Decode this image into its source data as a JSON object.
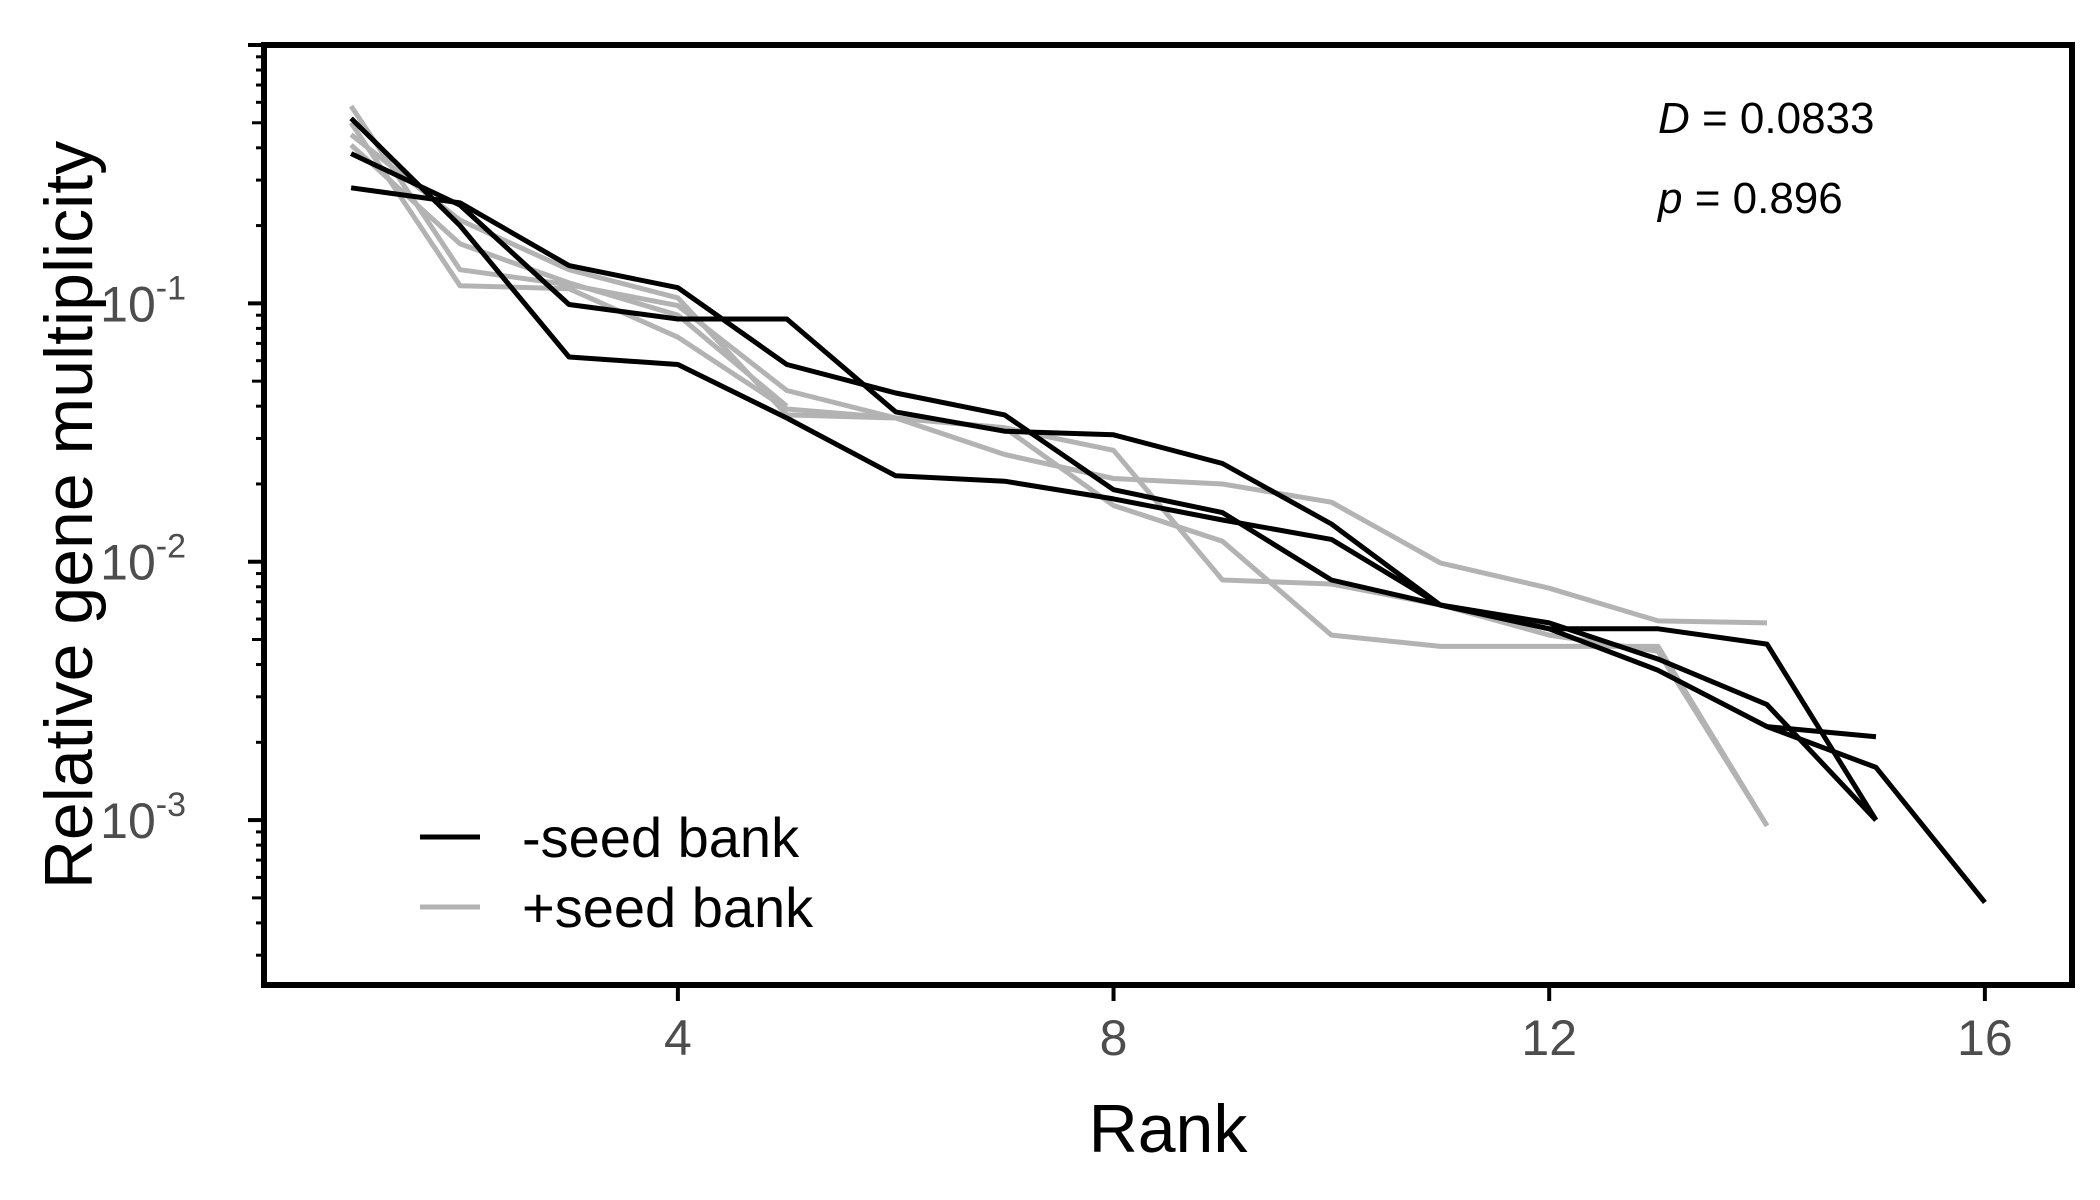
{
  "chart_data": {
    "type": "line",
    "xlabel": "Rank",
    "ylabel": "Relative gene multiplicity",
    "y_scale": "log10",
    "xlim": [
      0.2,
      16.8
    ],
    "ylim": [
      0.00023,
      1.0
    ],
    "x_ticks": [
      4,
      8,
      12,
      16
    ],
    "y_ticks": [
      {
        "value": 0.1,
        "base": "10",
        "exp": "-1"
      },
      {
        "value": 0.01,
        "base": "10",
        "exp": "-2"
      },
      {
        "value": 0.001,
        "base": "10",
        "exp": "-3"
      }
    ],
    "grid": false,
    "legend_position": "bottom-left",
    "legend": [
      {
        "label": "-seed bank",
        "color": "#000000"
      },
      {
        "label": "+seed bank",
        "color": "#b3b3b3"
      }
    ],
    "annotations": [
      {
        "symbol": "D",
        "rest": " = 0.0833"
      },
      {
        "symbol": "p",
        "rest": " = 0.896"
      }
    ],
    "series": [
      {
        "group": "-seed bank",
        "color": "#000000",
        "x": [
          1,
          2,
          3,
          4,
          5,
          6,
          7,
          8,
          9,
          10,
          11,
          12,
          13,
          14,
          15
        ],
        "y": [
          0.52,
          0.2,
          0.062,
          0.058,
          0.036,
          0.0215,
          0.0205,
          0.0175,
          0.0145,
          0.0122,
          0.0068,
          0.0058,
          0.0042,
          0.0028,
          0.001
        ]
      },
      {
        "group": "-seed bank",
        "color": "#000000",
        "x": [
          1,
          2,
          3,
          4,
          5,
          6,
          7,
          8,
          9,
          10,
          11,
          12,
          13,
          14,
          15
        ],
        "y": [
          0.28,
          0.245,
          0.14,
          0.115,
          0.058,
          0.045,
          0.037,
          0.019,
          0.0155,
          0.0085,
          0.0068,
          0.0055,
          0.0055,
          0.0048,
          0.001
        ]
      },
      {
        "group": "-seed bank",
        "color": "#000000",
        "x": [
          1,
          2,
          3,
          4,
          5,
          6,
          7,
          8,
          9,
          10,
          11,
          12,
          13,
          14,
          15,
          16
        ],
        "y": [
          0.38,
          0.24,
          0.099,
          0.087,
          0.087,
          0.038,
          0.032,
          0.031,
          0.024,
          0.014,
          0.0068,
          0.0055,
          0.0038,
          0.0023,
          0.0016,
          0.00048
        ]
      },
      {
        "group": "-seed bank",
        "color": "#000000",
        "x": [
          14,
          15
        ],
        "y": [
          0.0023,
          0.0021
        ]
      },
      {
        "group": "+seed bank",
        "color": "#b3b3b3",
        "x": [
          1,
          2,
          3,
          4,
          5,
          6,
          7,
          8,
          9,
          10,
          11,
          12,
          13,
          14
        ],
        "y": [
          0.58,
          0.135,
          0.118,
          0.098,
          0.046,
          0.036,
          0.026,
          0.021,
          0.02,
          0.017,
          0.0099,
          0.0079,
          0.0059,
          0.0058
        ]
      },
      {
        "group": "+seed bank",
        "color": "#b3b3b3",
        "x": [
          1,
          2,
          3,
          4,
          5,
          6,
          7,
          8,
          9,
          10,
          11,
          12,
          13,
          14
        ],
        "y": [
          0.5,
          0.117,
          0.114,
          0.074,
          0.039,
          0.036,
          0.033,
          0.027,
          0.0085,
          0.0082,
          0.0068,
          0.0052,
          0.0045,
          0.00095
        ]
      },
      {
        "group": "+seed bank",
        "color": "#b3b3b3",
        "x": [
          1,
          2,
          3,
          4,
          5,
          6,
          7,
          8,
          9,
          10,
          11,
          12,
          13,
          14
        ],
        "y": [
          0.45,
          0.21,
          0.135,
          0.105,
          0.037,
          0.036,
          0.033,
          0.0165,
          0.012,
          0.0052,
          0.0047,
          0.0047,
          0.0047,
          0.00095
        ]
      },
      {
        "group": "+seed bank",
        "color": "#b3b3b3",
        "x": [
          1,
          2,
          3,
          4,
          5
        ],
        "y": [
          0.41,
          0.17,
          0.12,
          0.09,
          0.04
        ]
      }
    ]
  }
}
